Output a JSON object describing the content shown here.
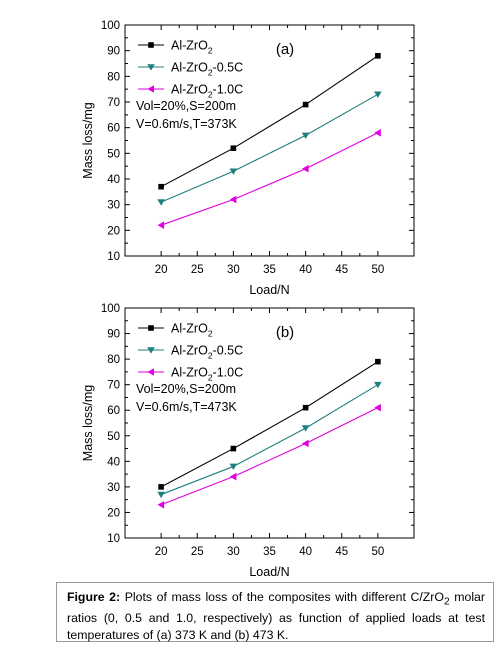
{
  "chart_data": [
    {
      "type": "line",
      "panel_label": "(a)",
      "xlabel": "Load/N",
      "ylabel": "Mass loss/mg",
      "xlim": [
        15,
        55
      ],
      "ylim": [
        10,
        100
      ],
      "x_ticks": [
        20,
        25,
        30,
        35,
        40,
        45,
        50
      ],
      "y_ticks": [
        10,
        20,
        30,
        40,
        50,
        60,
        70,
        80,
        90,
        100
      ],
      "x": [
        20,
        30,
        40,
        50
      ],
      "series": [
        {
          "name": "Al-ZrO",
          "sub": "2",
          "suffix": "",
          "color": "#000000",
          "marker": "square",
          "values": [
            37,
            52,
            69,
            88
          ]
        },
        {
          "name": "Al-ZrO",
          "sub": "2",
          "suffix": "-0.5C",
          "color": "#1f7f7f",
          "marker": "triangle-down",
          "values": [
            31,
            43,
            57,
            73
          ]
        },
        {
          "name": "Al-ZrO",
          "sub": "2",
          "suffix": "-1.0C",
          "color": "#e000e0",
          "marker": "triangle-left",
          "values": [
            22,
            32,
            44,
            58
          ]
        }
      ],
      "annotation": [
        "Vol=20%,S=200m",
        "V=0.6m/s,T=373K"
      ],
      "legend_position": "top-left",
      "grid": false
    },
    {
      "type": "line",
      "panel_label": "(b)",
      "xlabel": "Load/N",
      "ylabel": "Mass loss/mg",
      "xlim": [
        15,
        55
      ],
      "ylim": [
        10,
        100
      ],
      "x_ticks": [
        20,
        25,
        30,
        35,
        40,
        45,
        50
      ],
      "y_ticks": [
        10,
        20,
        30,
        40,
        50,
        60,
        70,
        80,
        90,
        100
      ],
      "x": [
        20,
        30,
        40,
        50
      ],
      "series": [
        {
          "name": "Al-ZrO",
          "sub": "2",
          "suffix": "",
          "color": "#000000",
          "marker": "square",
          "values": [
            30,
            45,
            61,
            79
          ]
        },
        {
          "name": "Al-ZrO",
          "sub": "2",
          "suffix": "-0.5C",
          "color": "#1f7f7f",
          "marker": "triangle-down",
          "values": [
            27,
            38,
            53,
            70
          ]
        },
        {
          "name": "Al-ZrO",
          "sub": "2",
          "suffix": "-1.0C",
          "color": "#e000e0",
          "marker": "triangle-left",
          "values": [
            23,
            34,
            47,
            61
          ]
        }
      ],
      "annotation": [
        "Vol=20%,S=200m",
        "V=0.6m/s,T=473K"
      ],
      "legend_position": "top-left",
      "grid": false
    }
  ],
  "caption": {
    "label": "Figure 2:",
    "text_1": " Plots of mass loss of the composites with different C/ZrO",
    "sub": "2",
    "text_2": " molar ratios (0, 0.5 and 1.0, respectively) as function of applied loads at test temperatures of (a) 373 K and (b) 473 K."
  }
}
